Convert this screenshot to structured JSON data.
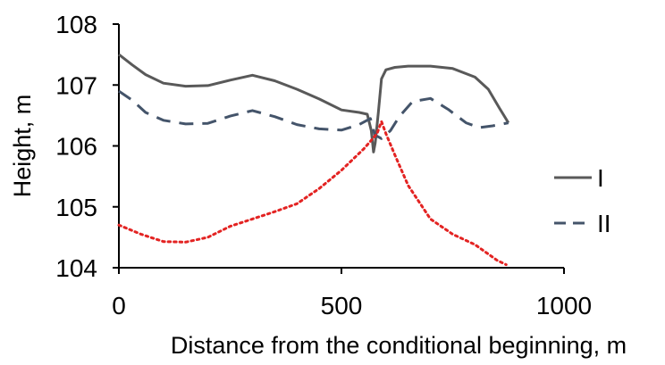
{
  "chart_data": {
    "type": "line",
    "title": "",
    "xlabel": "Distance from the conditional beginning, m",
    "ylabel": "Height, m",
    "xlim": [
      0,
      1000
    ],
    "ylim": [
      104,
      108
    ],
    "xticks": [
      "0",
      "500",
      "1000"
    ],
    "yticks": [
      "104",
      "105",
      "106",
      "107",
      "108"
    ],
    "grid": false,
    "legend_position": "right",
    "series": [
      {
        "name": "I",
        "style": "solid",
        "color": "#595959",
        "x": [
          0,
          30,
          60,
          100,
          150,
          200,
          250,
          300,
          350,
          400,
          450,
          500,
          540,
          558,
          567,
          572,
          576,
          583,
          590,
          600,
          620,
          650,
          700,
          750,
          800,
          830,
          855,
          875
        ],
        "y": [
          107.5,
          107.33,
          107.17,
          107.03,
          106.98,
          106.99,
          107.08,
          107.16,
          107.07,
          106.93,
          106.77,
          106.59,
          106.55,
          106.52,
          106.25,
          105.9,
          106.05,
          106.55,
          107.1,
          107.25,
          107.29,
          107.31,
          107.31,
          107.27,
          107.13,
          106.93,
          106.62,
          106.38
        ]
      },
      {
        "name": "II",
        "style": "dashed",
        "color": "#44546a",
        "x": [
          0,
          30,
          60,
          100,
          150,
          200,
          250,
          300,
          350,
          400,
          450,
          500,
          540,
          565,
          575,
          590,
          610,
          630,
          660,
          700,
          740,
          780,
          810,
          840,
          875
        ],
        "y": [
          106.9,
          106.75,
          106.55,
          106.42,
          106.36,
          106.37,
          106.49,
          106.58,
          106.48,
          106.35,
          106.28,
          106.26,
          106.35,
          106.45,
          106.18,
          106.12,
          106.25,
          106.48,
          106.73,
          106.78,
          106.6,
          106.38,
          106.3,
          106.33,
          106.38
        ]
      },
      {
        "name": "",
        "style": "dotted",
        "color": "#e32322",
        "x": [
          0,
          50,
          100,
          150,
          200,
          250,
          300,
          350,
          400,
          450,
          500,
          550,
          580,
          590,
          600,
          620,
          650,
          700,
          750,
          800,
          850,
          870
        ],
        "y": [
          104.7,
          104.55,
          104.43,
          104.42,
          104.5,
          104.68,
          104.8,
          104.92,
          105.05,
          105.3,
          105.6,
          105.95,
          106.2,
          106.4,
          106.2,
          105.85,
          105.35,
          104.8,
          104.55,
          104.38,
          104.12,
          104.05
        ]
      }
    ]
  }
}
